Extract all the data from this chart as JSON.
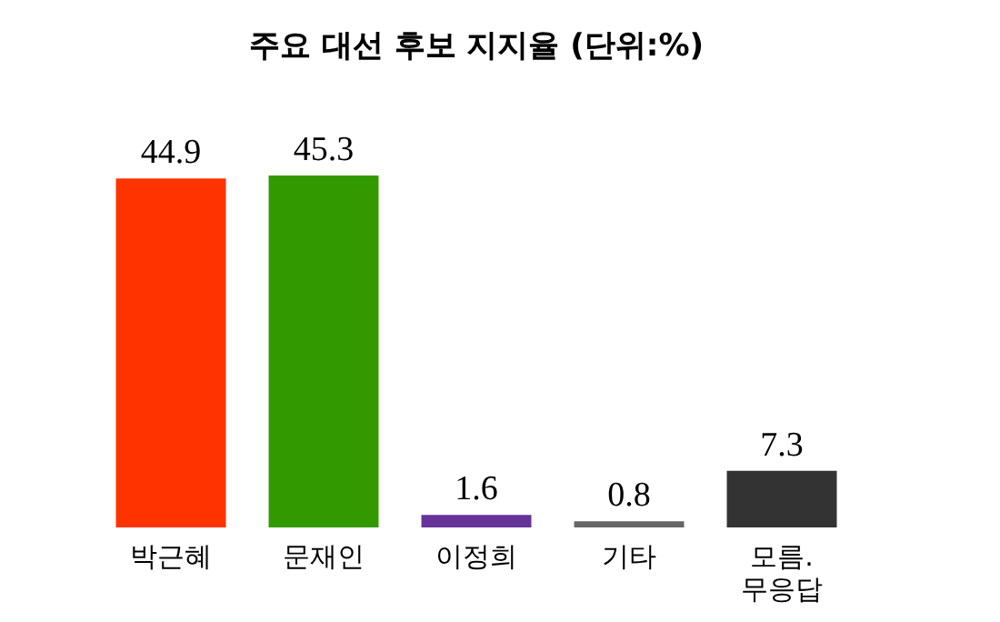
{
  "chart_data": {
    "type": "bar",
    "title": "주요 대선 후보 지지율 (단위:%)",
    "categories": [
      "박근혜",
      "문재인",
      "이정희",
      "기타",
      "모름. 무응답"
    ],
    "values": [
      44.9,
      45.3,
      1.6,
      0.8,
      7.3
    ],
    "colors": [
      "#ff3300",
      "#339900",
      "#663399",
      "#666666",
      "#333333"
    ],
    "data_labels": true,
    "grid": false,
    "legend": false
  }
}
